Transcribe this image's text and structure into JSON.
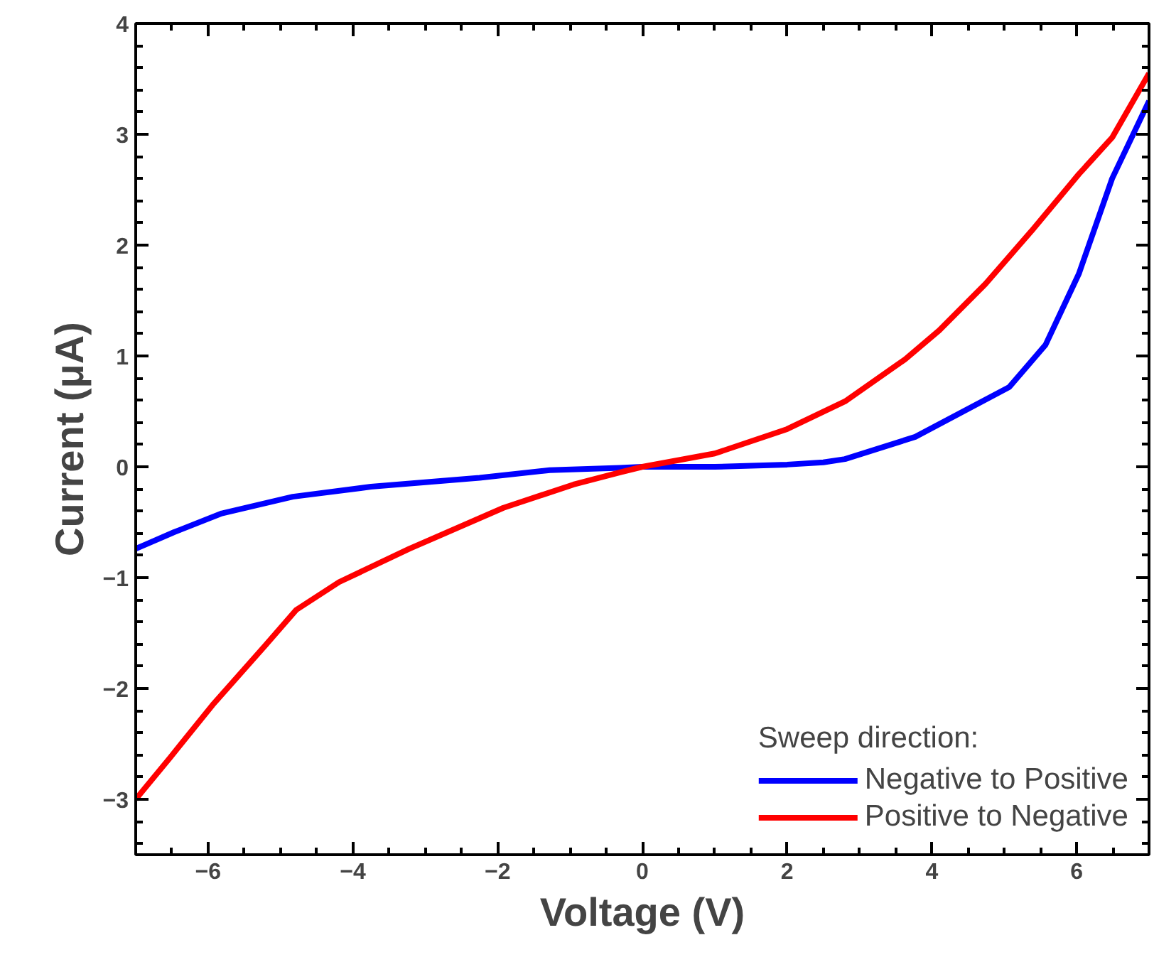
{
  "chart_data": {
    "type": "line",
    "xlabel": "Voltage (V)",
    "ylabel": "Current (μA)",
    "legend_title": "Sweep direction:",
    "xlim": [
      -7,
      7
    ],
    "ylim": [
      -3.5,
      4
    ],
    "xticks": [
      -6,
      -4,
      -2,
      0,
      2,
      4,
      6
    ],
    "yticks": [
      -3,
      -2,
      -1,
      0,
      1,
      2,
      3,
      4
    ],
    "grid": false,
    "legend": "bottom right",
    "line_style": "solid",
    "marker": "none",
    "series": [
      {
        "name": "Negative to Positive",
        "color": "#0000ff",
        "x": [
          -7,
          -6.47,
          -5.81,
          -4.83,
          -3.75,
          -2.25,
          -1.28,
          -0.31,
          0,
          1,
          2,
          2.5,
          2.8,
          3.77,
          5.07,
          5.57,
          6.03,
          6.49,
          7
        ],
        "values": [
          -0.74,
          -0.59,
          -0.42,
          -0.27,
          -0.18,
          -0.1,
          -0.03,
          -0.01,
          0,
          0,
          0.02,
          0.04,
          0.07,
          0.27,
          0.72,
          1.1,
          1.74,
          2.6,
          3.3
        ]
      },
      {
        "name": "Positive to Negative",
        "color": "#ff0000",
        "x": [
          -7,
          -6.52,
          -5.94,
          -5.22,
          -4.78,
          -4.19,
          -3.22,
          -1.92,
          -0.95,
          -0.31,
          0,
          1,
          2,
          2.8,
          3.63,
          4.1,
          4.74,
          5.38,
          6.03,
          6.49,
          7
        ],
        "values": [
          -3.0,
          -2.62,
          -2.15,
          -1.62,
          -1.29,
          -1.04,
          -0.74,
          -0.37,
          -0.16,
          -0.05,
          0,
          0.12,
          0.34,
          0.59,
          0.97,
          1.23,
          1.65,
          2.13,
          2.64,
          2.97,
          3.55
        ]
      }
    ]
  }
}
